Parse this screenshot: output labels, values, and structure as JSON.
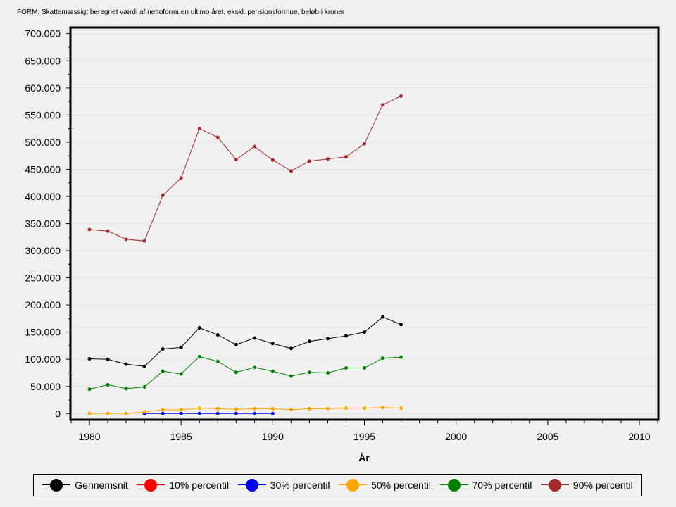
{
  "chart_data": {
    "type": "line",
    "title": "FORM: Skattemæssigt beregnet værdi af nettoformuen ultimo året, ekskl. pensionsformue, beløb i kroner",
    "xlabel": "År",
    "ylabel": "",
    "xlim": [
      1979,
      2011
    ],
    "ylim": [
      -10000,
      710000
    ],
    "x_ticks": [
      1980,
      1985,
      1990,
      1995,
      2000,
      2005,
      2010
    ],
    "x_tick_labels": [
      "1980",
      "1985",
      "1990",
      "1995",
      "2000",
      "2005",
      "2010"
    ],
    "y_ticks": [
      0,
      50000,
      100000,
      150000,
      200000,
      250000,
      300000,
      350000,
      400000,
      450000,
      500000,
      550000,
      600000,
      650000,
      700000
    ],
    "y_tick_labels": [
      "0",
      "50.000",
      "100.000",
      "150.000",
      "200.000",
      "250.000",
      "300.000",
      "350.000",
      "400.000",
      "450.000",
      "500.000",
      "550.000",
      "600.000",
      "650.000",
      "700.000"
    ],
    "grid": true,
    "legend": "bottom",
    "series": [
      {
        "name": "Gennemsnit",
        "color": "#000000",
        "x": [
          1980,
          1981,
          1982,
          1983,
          1984,
          1985,
          1986,
          1987,
          1988,
          1989,
          1990,
          1991,
          1992,
          1993,
          1994,
          1995,
          1996,
          1997
        ],
        "values": [
          101000,
          100000,
          91000,
          87000,
          119000,
          122000,
          158000,
          145000,
          127000,
          139000,
          129000,
          120000,
          133000,
          138000,
          143000,
          150000,
          178000,
          164000
        ]
      },
      {
        "name": "10% percentil",
        "color": "#ff0000",
        "x": [],
        "values": []
      },
      {
        "name": "30% percentil",
        "color": "#0000ff",
        "x": [
          1983,
          1984,
          1985,
          1986,
          1987,
          1988,
          1989,
          1990
        ],
        "values": [
          0,
          0,
          0,
          0,
          0,
          0,
          0,
          0
        ]
      },
      {
        "name": "50% percentil",
        "color": "#ffa500",
        "x": [
          1980,
          1981,
          1982,
          1983,
          1984,
          1985,
          1986,
          1987,
          1988,
          1989,
          1990,
          1991,
          1992,
          1993,
          1994,
          1995,
          1996,
          1997
        ],
        "values": [
          0,
          0,
          0,
          3000,
          7000,
          7000,
          10000,
          9000,
          8000,
          9000,
          9000,
          7000,
          9000,
          9000,
          10000,
          10000,
          11000,
          10000
        ]
      },
      {
        "name": "70% percentil",
        "color": "#008000",
        "x": [
          1980,
          1981,
          1982,
          1983,
          1984,
          1985,
          1986,
          1987,
          1988,
          1989,
          1990,
          1991,
          1992,
          1993,
          1994,
          1995,
          1996,
          1997
        ],
        "values": [
          45000,
          53000,
          46000,
          49000,
          78000,
          73000,
          105000,
          96000,
          76000,
          85000,
          78000,
          69000,
          76000,
          75000,
          84000,
          84000,
          102000,
          104000
        ]
      },
      {
        "name": "90% percentil",
        "color": "#a52a2a",
        "x": [
          1980,
          1981,
          1982,
          1983,
          1984,
          1985,
          1986,
          1987,
          1988,
          1989,
          1990,
          1991,
          1992,
          1993,
          1994,
          1995,
          1996,
          1997
        ],
        "values": [
          339000,
          336000,
          321000,
          318000,
          402000,
          434000,
          525000,
          509000,
          468000,
          492000,
          467000,
          447000,
          465000,
          469000,
          473000,
          497000,
          569000,
          585000
        ]
      }
    ]
  }
}
